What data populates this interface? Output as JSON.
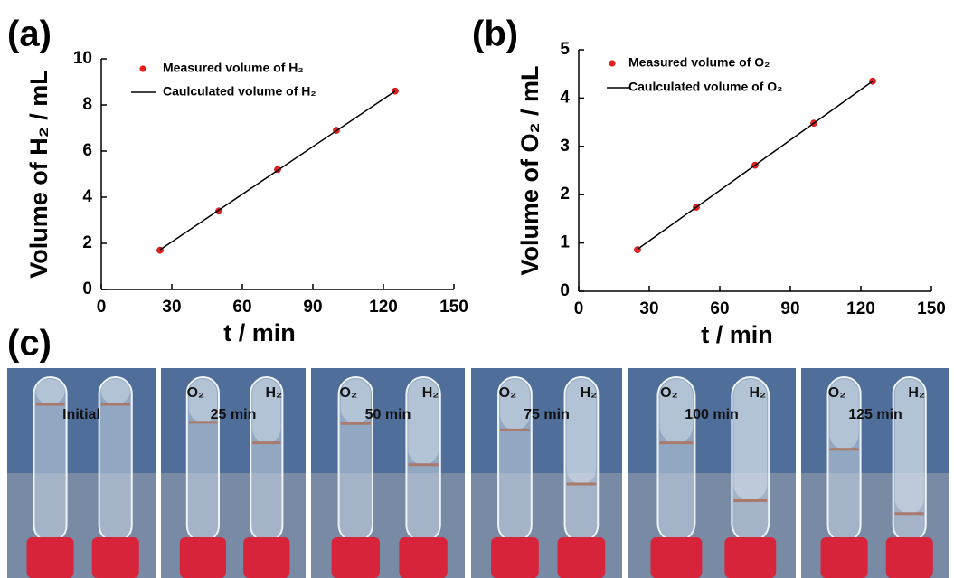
{
  "chart_data": [
    {
      "type": "scatter",
      "panel_label": "(a)",
      "x_label": "t / min",
      "y_label": "Volume of H₂ / mL",
      "xlim": [
        0,
        150
      ],
      "xticks": [
        0,
        30,
        60,
        90,
        120,
        150
      ],
      "ylim": [
        0,
        10
      ],
      "yticks": [
        0,
        2,
        4,
        6,
        8,
        10
      ],
      "series": [
        {
          "name": "Measured volume of H₂",
          "kind": "scatter",
          "color": "#e8201c",
          "x": [
            25,
            50,
            75,
            100,
            125
          ],
          "values": [
            1.7,
            3.4,
            5.2,
            6.9,
            8.6
          ]
        },
        {
          "name": "Caulculated volume of H₂",
          "kind": "line",
          "color": "#000000",
          "x": [
            25,
            50,
            75,
            100,
            125
          ],
          "values": [
            1.72,
            3.44,
            5.16,
            6.88,
            8.6
          ]
        }
      ]
    },
    {
      "type": "scatter",
      "panel_label": "(b)",
      "x_label": "t / min",
      "y_label": "Volume of O₂ / mL",
      "xlim": [
        0,
        150
      ],
      "xticks": [
        0,
        30,
        60,
        90,
        120,
        150
      ],
      "ylim": [
        0,
        5
      ],
      "yticks": [
        0,
        1,
        2,
        3,
        4,
        5
      ],
      "series": [
        {
          "name": "Measured volume of O₂",
          "kind": "scatter",
          "color": "#e8201c",
          "x": [
            25,
            50,
            75,
            100,
            125
          ],
          "values": [
            0.86,
            1.74,
            2.61,
            3.48,
            4.35
          ]
        },
        {
          "name": "Caulculated volume of O₂",
          "kind": "line",
          "color": "#000000",
          "x": [
            25,
            50,
            75,
            100,
            125
          ],
          "values": [
            0.87,
            1.74,
            2.61,
            3.48,
            4.35
          ]
        }
      ]
    }
  ],
  "panel_c": {
    "label": "(c)",
    "photos": [
      {
        "caption": "Initial"
      },
      {
        "tubes": [
          "O₂",
          "H₂"
        ],
        "caption": "25 min"
      },
      {
        "tubes": [
          "O₂",
          "H₂"
        ],
        "caption": "50 min"
      },
      {
        "tubes": [
          "O₂",
          "H₂"
        ],
        "caption": "75 min"
      },
      {
        "tubes": [
          "O₂",
          "H₂"
        ],
        "caption": "100 min"
      },
      {
        "tubes": [
          "O₂",
          "H₂"
        ],
        "caption": "125 min"
      }
    ]
  }
}
